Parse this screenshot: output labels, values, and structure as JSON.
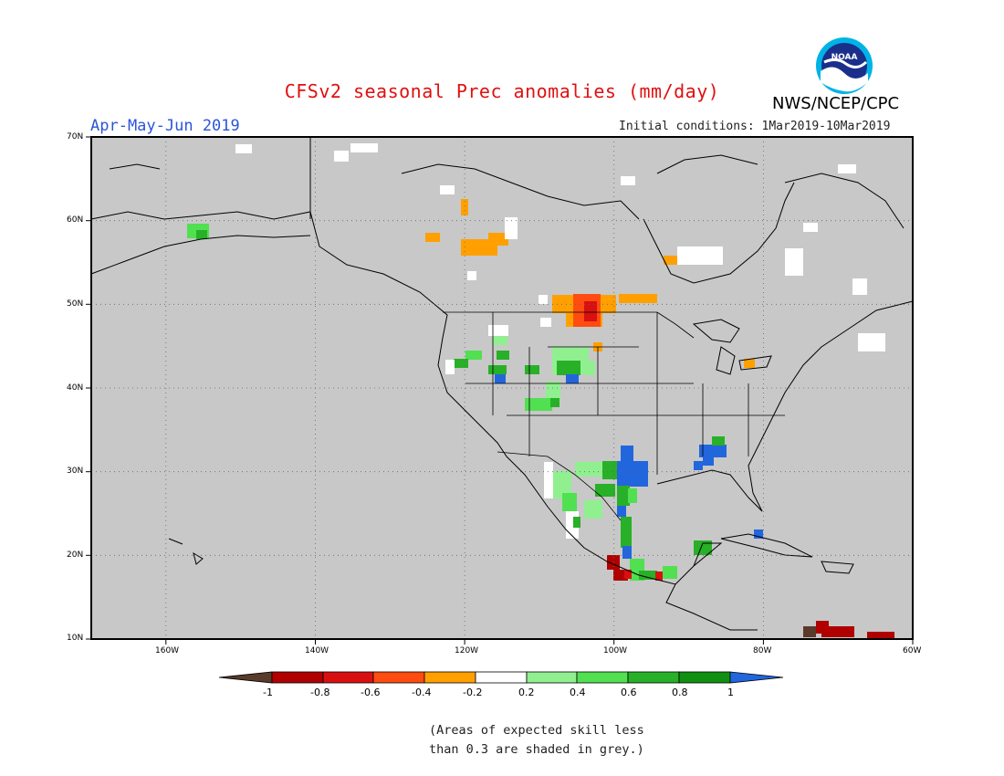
{
  "title": "CFSv2 seasonal Prec anomalies (mm/day)",
  "season": "Apr-May-Jun 2019",
  "initial_conditions": "Initial conditions: 1Mar2019-10Mar2019",
  "organization": "NWS/NCEP/CPC",
  "logo_text": "NOAA",
  "map": {
    "lat_labels": [
      "70N",
      "60N",
      "50N",
      "40N",
      "30N",
      "20N",
      "10N"
    ],
    "lon_labels": [
      "160W",
      "140W",
      "120W",
      "100W",
      "80W",
      "60W"
    ],
    "background_color": "#c8c8c8",
    "grid": "dotted"
  },
  "colorbar": {
    "labels": [
      "-1",
      "-0.8",
      "-0.6",
      "-0.4",
      "-0.2",
      "0.2",
      "0.4",
      "0.6",
      "0.8",
      "1"
    ],
    "colors": [
      "#5a3a2a",
      "#b00000",
      "#d81010",
      "#ff4c10",
      "#ffa000",
      "#ffffff",
      "#90f090",
      "#50e050",
      "#28b028",
      "#109010",
      "#2266dd"
    ]
  },
  "note_lines": [
    "(Areas of expected skill less",
    "than 0.3 are shaded in grey.)"
  ]
}
